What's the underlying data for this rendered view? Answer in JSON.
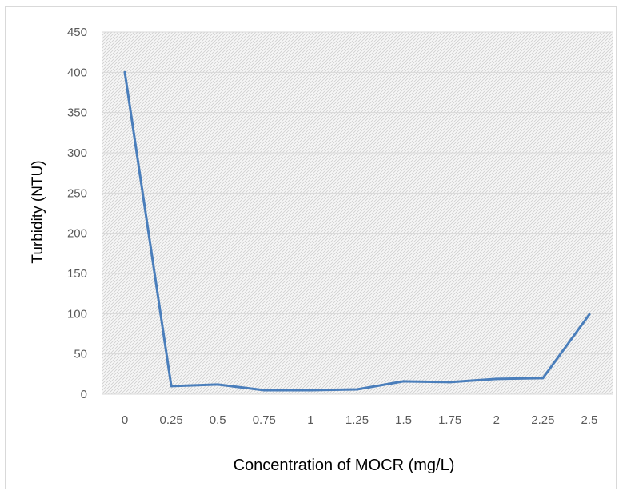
{
  "chart_data": {
    "type": "line",
    "title": "",
    "xlabel": "Concentration of MOCR (mg/L)",
    "ylabel": "Turbidity (NTU)",
    "categories": [
      "0",
      "0.25",
      "0.5",
      "0.75",
      "1",
      "1.25",
      "1.5",
      "1.75",
      "2",
      "2.25",
      "2.5"
    ],
    "yticks": [
      "0",
      "50",
      "100",
      "150",
      "200",
      "250",
      "300",
      "350",
      "400",
      "450"
    ],
    "ylim": [
      0,
      450
    ],
    "grid": true,
    "legend": "none",
    "series": [
      {
        "values": [
          400,
          10,
          12,
          5,
          5,
          6,
          16,
          15,
          19,
          20,
          99
        ]
      }
    ],
    "colors": {
      "line": "#4a7ebb",
      "grid": "#d9d9d9",
      "hatch": "#c8c8c8",
      "tick_text": "#595959"
    }
  }
}
